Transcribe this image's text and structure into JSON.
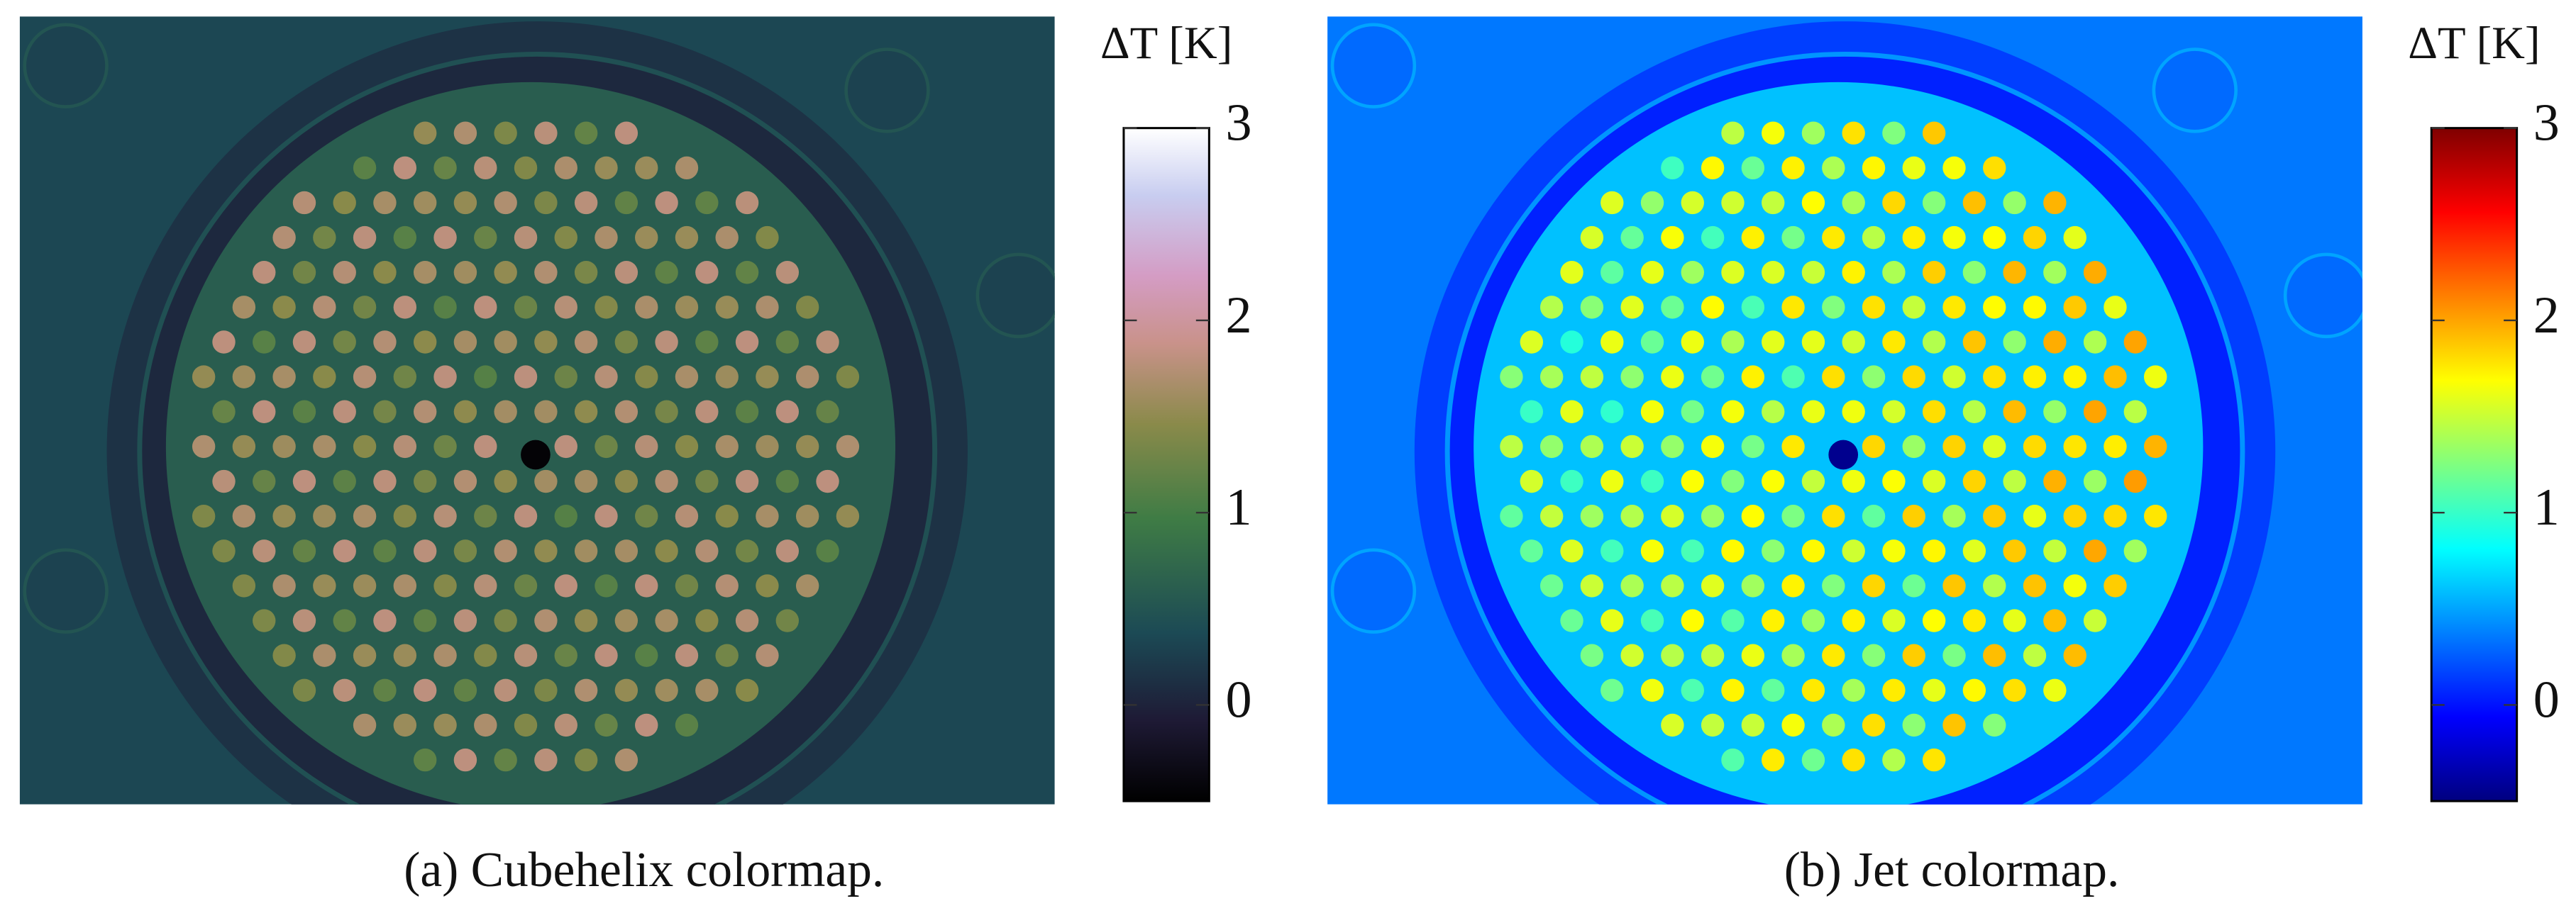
{
  "chart_data": [
    {
      "type": "heatmap",
      "colormap": "cubehelix",
      "colorbar_label": "ΔT [K]",
      "ylim": [
        -0.5,
        3
      ],
      "yticks": [
        0,
        1,
        2,
        3
      ],
      "caption": "(a) Cubehelix colormap."
    },
    {
      "type": "heatmap",
      "colormap": "jet",
      "colorbar_label": "ΔT [K]",
      "ylim": [
        -0.5,
        3
      ],
      "yticks": [
        0,
        1,
        2,
        3
      ],
      "caption": "(b) Jet colormap."
    }
  ]
}
